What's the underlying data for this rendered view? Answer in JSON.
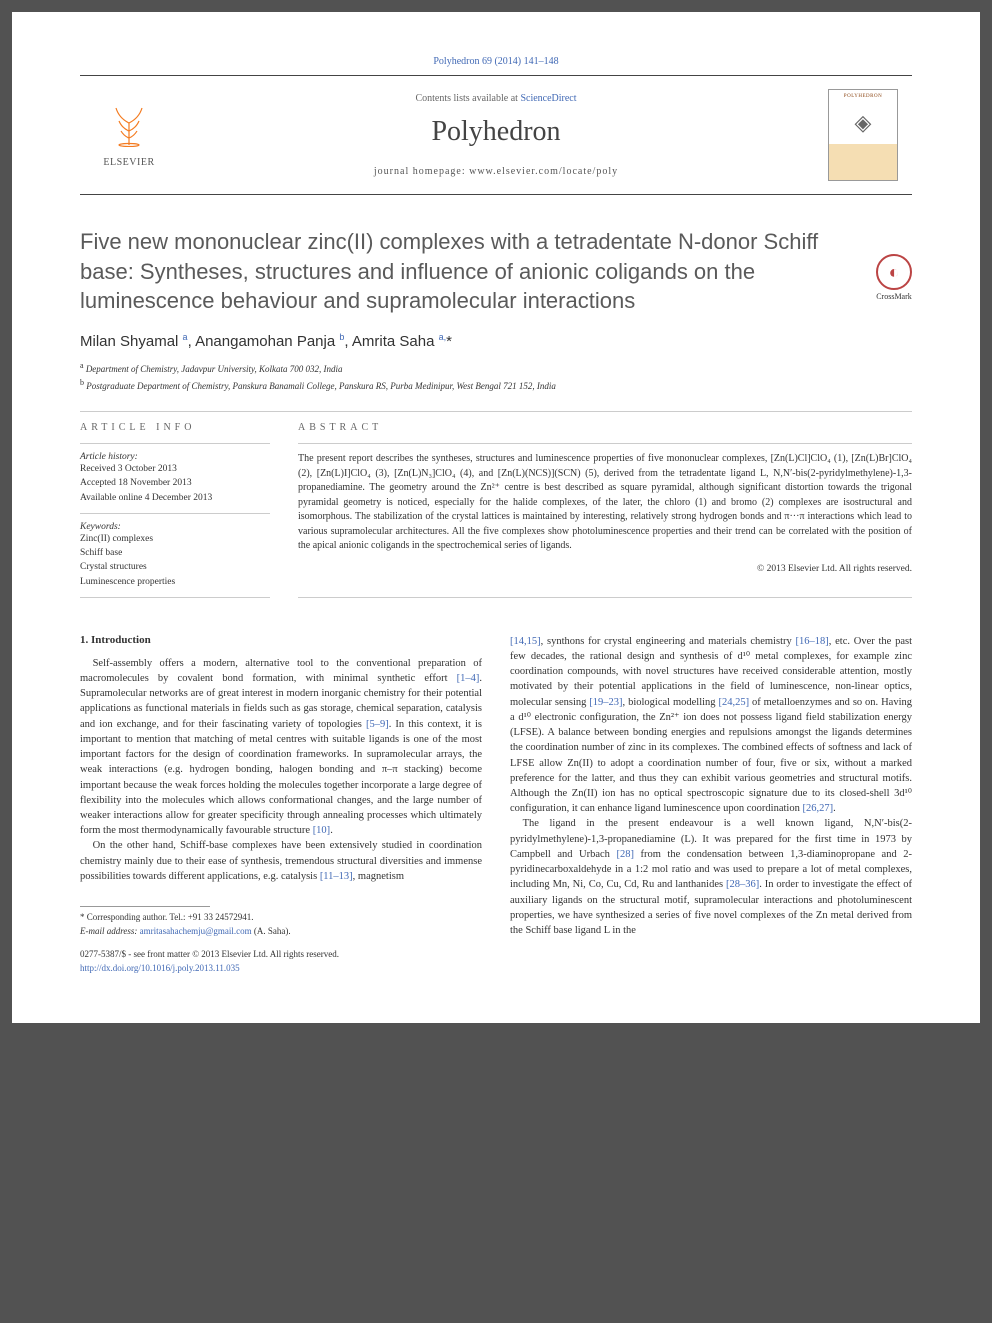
{
  "citation": "Polyhedron 69 (2014) 141–148",
  "masthead": {
    "publisher": "ELSEVIER",
    "contents_prefix": "Contents lists available at ",
    "contents_link": "ScienceDirect",
    "journal": "Polyhedron",
    "homepage_prefix": "journal homepage: ",
    "homepage_url": "www.elsevier.com/locate/poly"
  },
  "title": "Five new mononuclear zinc(II) complexes with a tetradentate N-donor Schiff base: Syntheses, structures and influence of anionic coligands on the luminescence behaviour and supramolecular interactions",
  "crossmark": "CrossMark",
  "authors_html": "Milan Shyamal <sup>a</sup>, Anangamohan Panja <sup>b</sup>, Amrita Saha <sup>a,</sup><span class='star'>*</span>",
  "affiliations": [
    {
      "sup": "a",
      "text": "Department of Chemistry, Jadavpur University, Kolkata 700 032, India"
    },
    {
      "sup": "b",
      "text": "Postgraduate Department of Chemistry, Panskura Banamali College, Panskura RS, Purba Medinipur, West Bengal 721 152, India"
    }
  ],
  "info_head": "ARTICLE INFO",
  "abs_head": "ABSTRACT",
  "history_label": "Article history:",
  "history": [
    "Received 3 October 2013",
    "Accepted 18 November 2013",
    "Available online 4 December 2013"
  ],
  "keywords_label": "Keywords:",
  "keywords": [
    "Zinc(II) complexes",
    "Schiff base",
    "Crystal structures",
    "Luminescence properties"
  ],
  "abstract": "The present report describes the syntheses, structures and luminescence properties of five mononuclear complexes, [Zn(L)Cl]ClO₄ (1), [Zn(L)Br]ClO₄ (2), [Zn(L)I]ClO₄ (3), [Zn(L)N₃]ClO₄ (4), and [Zn(L)(NCS)](SCN) (5), derived from the tetradentate ligand L, N,N′-bis(2-pyridylmethylene)-1,3-propanediamine. The geometry around the Zn²⁺ centre is best described as square pyramidal, although significant distortion towards the trigonal pyramidal geometry is noticed, especially for the halide complexes, of the later, the chloro (1) and bromo (2) complexes are isostructural and isomorphous. The stabilization of the crystal lattices is maintained by interesting, relatively strong hydrogen bonds and π···π interactions which lead to various supramolecular architectures. All the five complexes show photoluminescence properties and their trend can be correlated with the position of the apical anionic coligands in the spectrochemical series of ligands.",
  "copyright": "© 2013 Elsevier Ltd. All rights reserved.",
  "section1_head": "1. Introduction",
  "left_paras": [
    "Self-assembly offers a modern, alternative tool to the conventional preparation of macromolecules by covalent bond formation, with minimal synthetic effort <span class='blue'>[1–4]</span>. Supramolecular networks are of great interest in modern inorganic chemistry for their potential applications as functional materials in fields such as gas storage, chemical separation, catalysis and ion exchange, and for their fascinating variety of topologies <span class='blue'>[5–9]</span>. In this context, it is important to mention that matching of metal centres with suitable ligands is one of the most important factors for the design of coordination frameworks. In supramolecular arrays, the weak interactions (e.g. hydrogen bonding, halogen bonding and π–π stacking) become important because the weak forces holding the molecules together incorporate a large degree of flexibility into the molecules which allows conformational changes, and the large number of weaker interactions allow for greater specificity through annealing processes which ultimately form the most thermodynamically favourable structure <span class='blue'>[10]</span>.",
    "On the other hand, Schiff-base complexes have been extensively studied in coordination chemistry mainly due to their ease of synthesis, tremendous structural diversities and immense possibilities towards different applications, e.g. catalysis <span class='blue'>[11–13]</span>, magnetism"
  ],
  "right_paras": [
    "<span class='blue'>[14,15]</span>, synthons for crystal engineering and materials chemistry <span class='blue'>[16–18]</span>, etc. Over the past few decades, the rational design and synthesis of d¹⁰ metal complexes, for example zinc coordination compounds, with novel structures have received considerable attention, mostly motivated by their potential applications in the field of luminescence, non-linear optics, molecular sensing <span class='blue'>[19–23]</span>, biological modelling <span class='blue'>[24,25]</span> of metalloenzymes and so on. Having a d¹⁰ electronic configuration, the Zn²⁺ ion does not possess ligand field stabilization energy (LFSE). A balance between bonding energies and repulsions amongst the ligands determines the coordination number of zinc in its complexes. The combined effects of softness and lack of LFSE allow Zn(II) to adopt a coordination number of four, five or six, without a marked preference for the latter, and thus they can exhibit various geometries and structural motifs. Although the Zn(II) ion has no optical spectroscopic signature due to its closed-shell 3d¹⁰ configuration, it can enhance ligand luminescence upon coordination <span class='blue'>[26,27]</span>.",
    "The ligand in the present endeavour is a well known ligand, N,N′-bis(2-pyridylmethylene)-1,3-propanediamine (L). It was prepared for the first time in 1973 by Campbell and Urbach <span class='blue'>[28]</span> from the condensation between 1,3-diaminopropane and 2-pyridinecarboxaldehyde in a 1:2 mol ratio and was used to prepare a lot of metal complexes, including Mn, Ni, Co, Cu, Cd, Ru and lanthanides <span class='blue'>[28–36]</span>. In order to investigate the effect of auxiliary ligands on the structural motif, supramolecular interactions and photoluminescent properties, we have synthesized a series of five novel complexes of the Zn metal derived from the Schiff base ligand L in the"
  ],
  "corresponding": "* Corresponding author. Tel.: +91 33 24572941.",
  "email_label": "E-mail address: ",
  "email_addr": "amritasahachemju@gmail.com",
  "email_who": " (A. Saha).",
  "issn_line": "0277-5387/$ - see front matter © 2013 Elsevier Ltd. All rights reserved.",
  "doi": "http://dx.doi.org/10.1016/j.poly.2013.11.035",
  "colors": {
    "link": "#4169b5",
    "text": "#333333",
    "heading_gray": "#5a5a5a",
    "orange": "#f47b20"
  }
}
